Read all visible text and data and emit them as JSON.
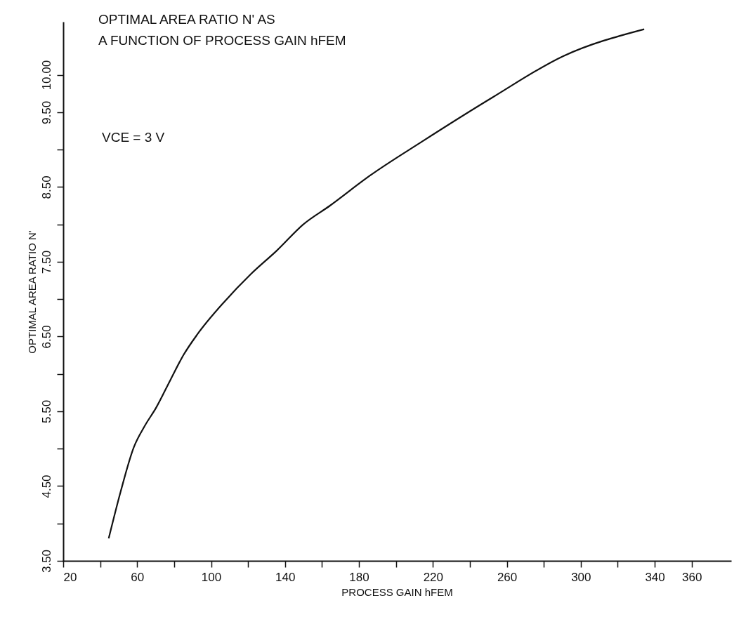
{
  "chart_data": {
    "type": "line",
    "title": [
      "OPTIMAL  AREA RATIO  N' AS",
      "A FUNCTION OF PROCESS GAIN  hFEM"
    ],
    "xlabel": "PROCESS GAIN  hFEM",
    "ylabel": "OPTIMAL  AREA  RATIO  N'",
    "annotations": [
      "VCE  =  3 V"
    ],
    "series": [
      {
        "color": "#111111",
        "x": [
          44.6,
          51,
          58.2,
          64,
          70.3,
          78.2,
          85,
          92.6,
          107.0,
          121.3,
          135.6,
          149.9,
          164.3,
          185.8,
          214.3,
          252.4,
          290.5,
          334.3
        ],
        "values": [
          3.8,
          4.42,
          5.02,
          5.3,
          5.55,
          5.93,
          6.25,
          6.53,
          6.96,
          7.33,
          7.65,
          8.0,
          8.25,
          8.65,
          9.11,
          9.7,
          10.25,
          10.61
        ]
      }
    ],
    "xlim": [
      20,
      381
    ],
    "ylim": [
      3.5,
      10.7
    ],
    "xticks": [
      {
        "value": 20,
        "label": "20"
      },
      {
        "value": 40,
        "label": null
      },
      {
        "value": 60,
        "label": "60"
      },
      {
        "value": 80,
        "label": null
      },
      {
        "value": 100,
        "label": "100"
      },
      {
        "value": 120,
        "label": null
      },
      {
        "value": 140,
        "label": "140"
      },
      {
        "value": 160,
        "label": null
      },
      {
        "value": 180,
        "label": "180"
      },
      {
        "value": 200,
        "label": null
      },
      {
        "value": 220,
        "label": "220"
      },
      {
        "value": 240,
        "label": null
      },
      {
        "value": 260,
        "label": "260"
      },
      {
        "value": 280,
        "label": null
      },
      {
        "value": 300,
        "label": "300"
      },
      {
        "value": 320,
        "label": null
      },
      {
        "value": 340,
        "label": "340"
      },
      {
        "value": 360,
        "label": "360"
      }
    ],
    "yticks": [
      {
        "value": 3.5,
        "label": "3.50"
      },
      {
        "value": 4.0,
        "label": null
      },
      {
        "value": 4.5,
        "label": "4.50"
      },
      {
        "value": 5.0,
        "label": null
      },
      {
        "value": 5.5,
        "label": "5.50"
      },
      {
        "value": 6.0,
        "label": null
      },
      {
        "value": 6.5,
        "label": "6.50"
      },
      {
        "value": 7.0,
        "label": null
      },
      {
        "value": 7.5,
        "label": "7.50"
      },
      {
        "value": 8.0,
        "label": null
      },
      {
        "value": 8.5,
        "label": "8.50"
      },
      {
        "value": 9.0,
        "label": null
      },
      {
        "value": 9.5,
        "label": "9.50"
      },
      {
        "value": 10.0,
        "label": "10.00"
      }
    ],
    "grid": false,
    "marker": "none",
    "line_style": "solid"
  }
}
